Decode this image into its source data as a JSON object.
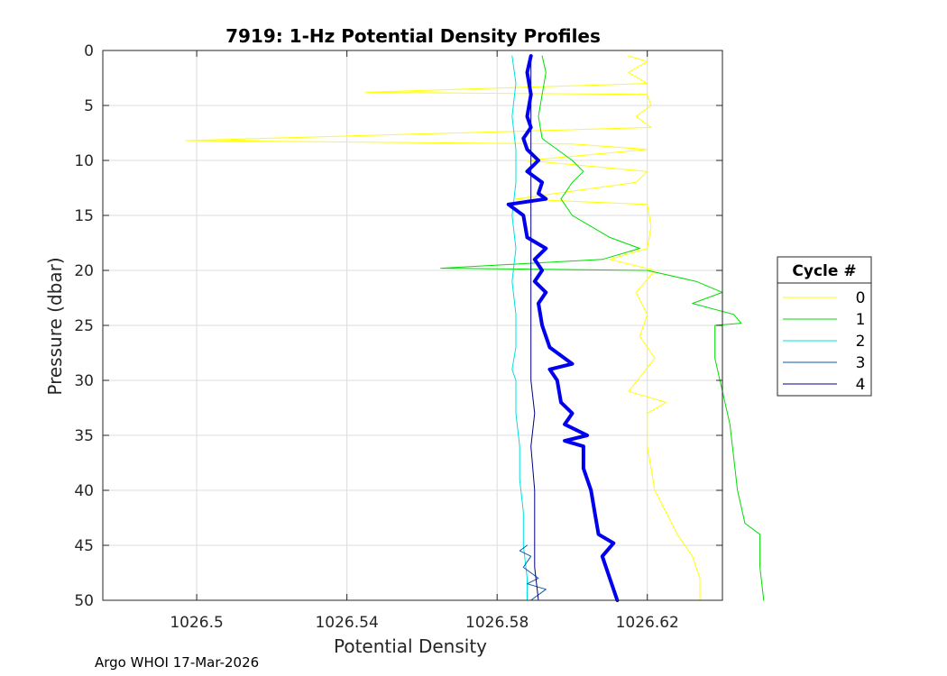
{
  "chart_data": {
    "type": "line",
    "title": "7919: 1-Hz Potential Density Profiles",
    "xlabel": "Potential Density",
    "ylabel": "Pressure (dbar)",
    "xlim": [
      1026.475,
      1026.64
    ],
    "ylim": [
      0,
      50
    ],
    "y_reversed": true,
    "grid": true,
    "x_ticks": [
      1026.5,
      1026.54,
      1026.58,
      1026.62
    ],
    "x_tick_labels": [
      "1026.5",
      "1026.54",
      "1026.58",
      "1026.62"
    ],
    "y_ticks": [
      0,
      5,
      10,
      15,
      20,
      25,
      30,
      35,
      40,
      45,
      50
    ],
    "y_tick_labels": [
      "0",
      "5",
      "10",
      "15",
      "20",
      "25",
      "30",
      "35",
      "40",
      "45",
      "50"
    ],
    "legend": {
      "title": "Cycle #",
      "placement": "outside-right"
    },
    "series": [
      {
        "name": "0",
        "color": "#ffff00",
        "width": 1,
        "points": [
          [
            1026.615,
            0.5
          ],
          [
            1026.62,
            1
          ],
          [
            1026.615,
            2
          ],
          [
            1026.62,
            3
          ],
          [
            1026.545,
            3.8
          ],
          [
            1026.62,
            4
          ],
          [
            1026.621,
            5
          ],
          [
            1026.617,
            6
          ],
          [
            1026.621,
            7
          ],
          [
            1026.497,
            8.2
          ],
          [
            1026.6,
            8.5
          ],
          [
            1026.62,
            9
          ],
          [
            1026.588,
            10
          ],
          [
            1026.62,
            11
          ],
          [
            1026.617,
            12
          ],
          [
            1026.585,
            13.5
          ],
          [
            1026.62,
            14
          ],
          [
            1026.621,
            16
          ],
          [
            1026.62,
            18
          ],
          [
            1026.61,
            19
          ],
          [
            1026.622,
            20
          ],
          [
            1026.617,
            22
          ],
          [
            1026.62,
            24
          ],
          [
            1026.618,
            26
          ],
          [
            1026.622,
            28
          ],
          [
            1026.615,
            31
          ],
          [
            1026.625,
            32
          ],
          [
            1026.62,
            33
          ],
          [
            1026.62,
            36
          ],
          [
            1026.621,
            38
          ],
          [
            1026.622,
            40
          ],
          [
            1026.625,
            42
          ],
          [
            1026.628,
            44
          ],
          [
            1026.632,
            46
          ],
          [
            1026.634,
            48
          ],
          [
            1026.634,
            50
          ]
        ]
      },
      {
        "name": "1",
        "color": "#00dd00",
        "width": 1,
        "points": [
          [
            1026.592,
            0.5
          ],
          [
            1026.593,
            2
          ],
          [
            1026.592,
            4
          ],
          [
            1026.591,
            6
          ],
          [
            1026.592,
            8
          ],
          [
            1026.6,
            10
          ],
          [
            1026.603,
            11
          ],
          [
            1026.6,
            12
          ],
          [
            1026.597,
            13.5
          ],
          [
            1026.6,
            15
          ],
          [
            1026.61,
            17
          ],
          [
            1026.618,
            18
          ],
          [
            1026.608,
            19
          ],
          [
            1026.565,
            19.8
          ],
          [
            1026.62,
            20
          ],
          [
            1026.633,
            21
          ],
          [
            1026.64,
            22
          ],
          [
            1026.632,
            23
          ],
          [
            1026.643,
            24
          ],
          [
            1026.645,
            24.8
          ],
          [
            1026.638,
            25
          ],
          [
            1026.638,
            28
          ],
          [
            1026.64,
            31
          ],
          [
            1026.642,
            34
          ],
          [
            1026.643,
            37
          ],
          [
            1026.644,
            40
          ],
          [
            1026.646,
            43
          ],
          [
            1026.65,
            44
          ],
          [
            1026.65,
            47
          ],
          [
            1026.651,
            50
          ]
        ]
      },
      {
        "name": "2",
        "color": "#00e0e0",
        "width": 1,
        "points": [
          [
            1026.584,
            0.5
          ],
          [
            1026.585,
            3
          ],
          [
            1026.584,
            6
          ],
          [
            1026.585,
            9
          ],
          [
            1026.585,
            12
          ],
          [
            1026.584,
            15
          ],
          [
            1026.585,
            18
          ],
          [
            1026.584,
            21
          ],
          [
            1026.585,
            24
          ],
          [
            1026.585,
            27
          ],
          [
            1026.584,
            29
          ],
          [
            1026.585,
            30
          ],
          [
            1026.585,
            33
          ],
          [
            1026.586,
            36
          ],
          [
            1026.586,
            39
          ],
          [
            1026.587,
            42
          ],
          [
            1026.587,
            45
          ],
          [
            1026.588,
            48
          ],
          [
            1026.588,
            50
          ]
        ]
      },
      {
        "name": "3",
        "color": "#0a5aa8",
        "width": 1,
        "points": [
          [
            1026.588,
            45
          ],
          [
            1026.586,
            45.5
          ],
          [
            1026.589,
            46
          ],
          [
            1026.587,
            47
          ],
          [
            1026.591,
            48
          ],
          [
            1026.588,
            48.5
          ],
          [
            1026.593,
            49
          ],
          [
            1026.589,
            50
          ]
        ]
      },
      {
        "name": "4",
        "color": "#000080",
        "width": 1,
        "points": [
          [
            1026.589,
            0.5
          ],
          [
            1026.589,
            5
          ],
          [
            1026.589,
            10
          ],
          [
            1026.589,
            15
          ],
          [
            1026.589,
            20
          ],
          [
            1026.589,
            25
          ],
          [
            1026.589,
            30
          ],
          [
            1026.59,
            33
          ],
          [
            1026.589,
            36
          ],
          [
            1026.59,
            40
          ],
          [
            1026.59,
            44
          ],
          [
            1026.59,
            47
          ],
          [
            1026.591,
            50
          ]
        ]
      },
      {
        "name": "",
        "color": "#0000ee",
        "width": 4,
        "points": [
          [
            1026.589,
            0.5
          ],
          [
            1026.588,
            2
          ],
          [
            1026.589,
            4
          ],
          [
            1026.588,
            6
          ],
          [
            1026.589,
            7
          ],
          [
            1026.587,
            8
          ],
          [
            1026.588,
            9
          ],
          [
            1026.591,
            10
          ],
          [
            1026.588,
            11
          ],
          [
            1026.592,
            12
          ],
          [
            1026.591,
            13
          ],
          [
            1026.593,
            13.5
          ],
          [
            1026.583,
            14
          ],
          [
            1026.587,
            15
          ],
          [
            1026.588,
            17
          ],
          [
            1026.593,
            18
          ],
          [
            1026.59,
            19
          ],
          [
            1026.592,
            20
          ],
          [
            1026.59,
            21
          ],
          [
            1026.593,
            22
          ],
          [
            1026.591,
            23
          ],
          [
            1026.592,
            25
          ],
          [
            1026.594,
            27
          ],
          [
            1026.6,
            28.5
          ],
          [
            1026.594,
            29
          ],
          [
            1026.596,
            30
          ],
          [
            1026.597,
            32
          ],
          [
            1026.6,
            33
          ],
          [
            1026.598,
            34
          ],
          [
            1026.604,
            35
          ],
          [
            1026.598,
            35.5
          ],
          [
            1026.603,
            36
          ],
          [
            1026.603,
            38
          ],
          [
            1026.605,
            40
          ],
          [
            1026.606,
            42
          ],
          [
            1026.607,
            44
          ],
          [
            1026.611,
            44.8
          ],
          [
            1026.608,
            46
          ],
          [
            1026.61,
            48
          ],
          [
            1026.612,
            50
          ]
        ]
      }
    ]
  },
  "footer": "Argo WHOI 17-Mar-2026"
}
